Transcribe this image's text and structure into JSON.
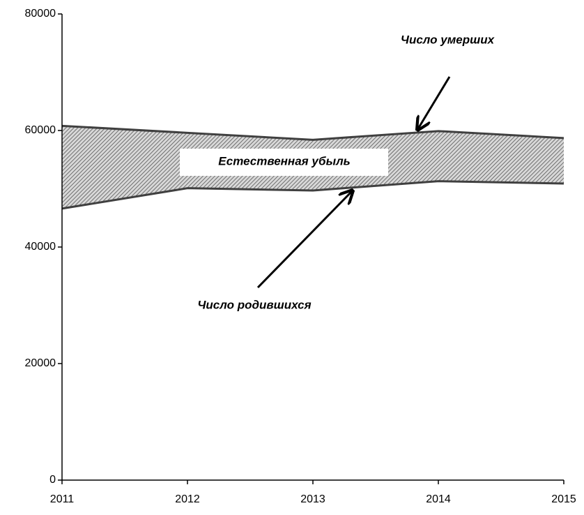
{
  "chart_data": {
    "type": "area-between",
    "x": [
      2011,
      2012,
      2013,
      2014,
      2015
    ],
    "xlim": [
      2011,
      2015
    ],
    "xticks": [
      2011,
      2012,
      2013,
      2014,
      2015
    ],
    "ylim": [
      0,
      80000
    ],
    "yticks": [
      0,
      20000,
      40000,
      60000,
      80000
    ],
    "series": [
      {
        "color": "#404040",
        "values": [
          60800,
          59600,
          58400,
          59900,
          58700
        ]
      },
      {
        "color": "#404040",
        "values": [
          46600,
          50100,
          49700,
          51300,
          50900
        ]
      }
    ],
    "annotations": [
      "Число умерших",
      "Естественная убыль",
      "Число родившихся"
    ]
  }
}
